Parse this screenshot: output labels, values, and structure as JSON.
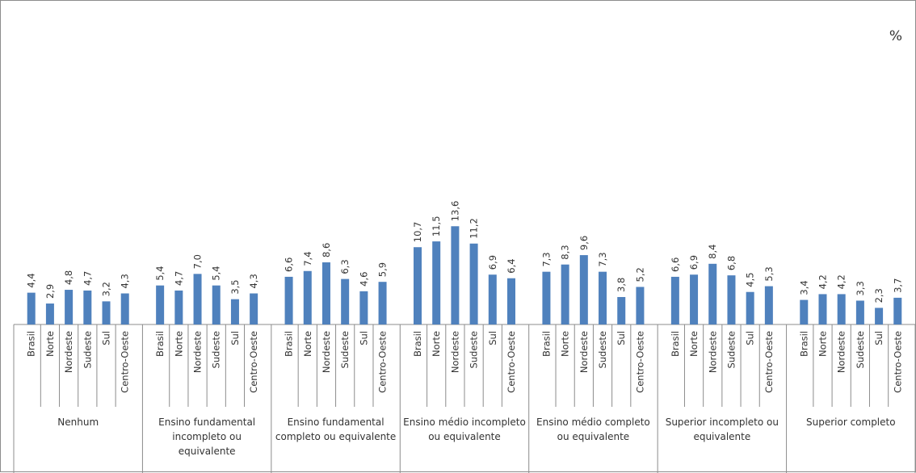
{
  "unit_label": "%",
  "chart_data": {
    "type": "bar",
    "unit": "%",
    "bar_color": "#4f81bd",
    "regions": [
      "Brasil",
      "Norte",
      "Nordeste",
      "Sudeste",
      "Sul",
      "Centro-Oeste"
    ],
    "groups": [
      {
        "name": [
          "Nenhum"
        ],
        "values": [
          4.4,
          2.9,
          4.8,
          4.7,
          3.2,
          4.3
        ],
        "labels": [
          "4,4",
          "2,9",
          "4,8",
          "4,7",
          "3,2",
          "4,3"
        ]
      },
      {
        "name": [
          "Ensino fundamental",
          "incompleto ou",
          "equivalente"
        ],
        "values": [
          5.4,
          4.7,
          7.0,
          5.4,
          3.5,
          4.3
        ],
        "labels": [
          "5,4",
          "4,7",
          "7,0",
          "5,4",
          "3,5",
          "4,3"
        ]
      },
      {
        "name": [
          "Ensino fundamental",
          "completo ou equivalente"
        ],
        "values": [
          6.6,
          7.4,
          8.6,
          6.3,
          4.6,
          5.9
        ],
        "labels": [
          "6,6",
          "7,4",
          "8,6",
          "6,3",
          "4,6",
          "5,9"
        ]
      },
      {
        "name": [
          "Ensino médio incompleto",
          "ou equivalente"
        ],
        "values": [
          10.7,
          11.5,
          13.6,
          11.2,
          6.9,
          6.4
        ],
        "labels": [
          "10,7",
          "11,5",
          "13,6",
          "11,2",
          "6,9",
          "6,4"
        ]
      },
      {
        "name": [
          "Ensino médio completo",
          "ou equivalente"
        ],
        "values": [
          7.3,
          8.3,
          9.6,
          7.3,
          3.8,
          5.2
        ],
        "labels": [
          "7,3",
          "8,3",
          "9,6",
          "7,3",
          "3,8",
          "5,2"
        ]
      },
      {
        "name": [
          "Superior incompleto ou",
          "equivalente"
        ],
        "values": [
          6.6,
          6.9,
          8.4,
          6.8,
          4.5,
          5.3
        ],
        "labels": [
          "6,6",
          "6,9",
          "8,4",
          "6,8",
          "4,5",
          "5,3"
        ]
      },
      {
        "name": [
          "Superior completo"
        ],
        "values": [
          3.4,
          4.2,
          4.2,
          3.3,
          2.3,
          3.7
        ],
        "labels": [
          "3,4",
          "4,2",
          "4,2",
          "3,3",
          "2,3",
          "3,7"
        ]
      }
    ]
  }
}
